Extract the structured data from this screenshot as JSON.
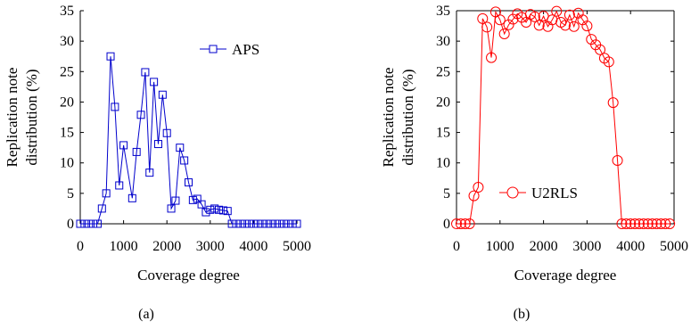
{
  "chart_data": [
    {
      "panel_label": "(a)",
      "type": "line",
      "xlabel": "Coverage degree",
      "ylabel": [
        "Replication note",
        "distribution (%)"
      ],
      "xlim": [
        0,
        5000
      ],
      "ylim": [
        0,
        35
      ],
      "xticks": [
        0,
        1000,
        2000,
        3000,
        4000,
        5000
      ],
      "yticks": [
        0,
        5,
        10,
        15,
        20,
        25,
        30,
        35
      ],
      "grid": false,
      "box": "left-bottom",
      "legend_position": "top-right",
      "series": [
        {
          "name": "APS",
          "color": "#0000cc",
          "marker": "square",
          "x": [
            0,
            100,
            200,
            300,
            400,
            500,
            600,
            700,
            800,
            900,
            1000,
            1200,
            1300,
            1400,
            1500,
            1600,
            1700,
            1800,
            1900,
            2000,
            2100,
            2200,
            2300,
            2400,
            2500,
            2600,
            2700,
            2800,
            2900,
            3000,
            3100,
            3200,
            3300,
            3400,
            3500,
            3600,
            3700,
            3800,
            3900,
            4000,
            4100,
            4200,
            4300,
            4400,
            4500,
            4600,
            4700,
            4800,
            4900,
            5000
          ],
          "y": [
            0,
            0,
            0,
            0,
            0,
            2.5,
            5,
            27.5,
            19.2,
            6.3,
            12.9,
            4.2,
            11.8,
            17.9,
            24.9,
            8.4,
            23.3,
            13.1,
            21.2,
            14.9,
            2.5,
            3.8,
            12.5,
            10.4,
            6.8,
            3.9,
            4.1,
            3.2,
            1.9,
            2.3,
            2.5,
            2.3,
            2.2,
            2.1,
            0,
            0,
            0,
            0,
            0,
            0,
            0,
            0,
            0,
            0,
            0,
            0,
            0,
            0,
            0,
            0
          ]
        }
      ]
    },
    {
      "panel_label": "(b)",
      "type": "line",
      "xlabel": "Coverage degree",
      "ylabel": [
        "Replication note",
        "distribution (%)"
      ],
      "xlim": [
        0,
        5000
      ],
      "ylim": [
        0,
        35
      ],
      "xticks": [
        0,
        1000,
        2000,
        3000,
        4000,
        5000
      ],
      "yticks": [
        0,
        5,
        10,
        15,
        20,
        25,
        30,
        35
      ],
      "grid": false,
      "box": "full",
      "legend_position": "bottom-right",
      "series": [
        {
          "name": "U2RLS",
          "color": "#ff0000",
          "marker": "circle",
          "x": [
            0,
            100,
            200,
            300,
            400,
            500,
            600,
            700,
            800,
            900,
            1000,
            1100,
            1200,
            1300,
            1400,
            1500,
            1600,
            1700,
            1800,
            1900,
            2000,
            2100,
            2200,
            2300,
            2400,
            2500,
            2600,
            2700,
            2800,
            2900,
            3000,
            3100,
            3200,
            3300,
            3400,
            3500,
            3600,
            3700,
            3800,
            3900,
            4000,
            4100,
            4200,
            4300,
            4400,
            4500,
            4600,
            4700,
            4800,
            4900
          ],
          "y": [
            0,
            0,
            0,
            0,
            4.6,
            6.0,
            33.7,
            32.3,
            27.3,
            34.8,
            33.5,
            31.2,
            32.7,
            33.6,
            34.5,
            33.9,
            33.1,
            34.4,
            34.0,
            32.6,
            34.1,
            32.4,
            33.5,
            34.9,
            33.1,
            32.6,
            34.3,
            32.4,
            34.6,
            33.5,
            32.5,
            30.3,
            29.4,
            28.6,
            27.2,
            26.6,
            19.9,
            10.4,
            0,
            0,
            0,
            0,
            0,
            0,
            0,
            0,
            0,
            0,
            0,
            0
          ]
        }
      ]
    }
  ]
}
